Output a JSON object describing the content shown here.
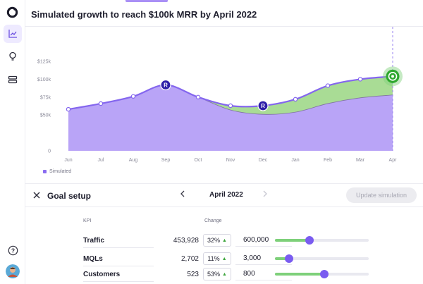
{
  "app": {
    "title": "Simulated growth to reach $100k MRR by April 2022"
  },
  "sidebar": {
    "items": [
      {
        "icon": "chart-icon",
        "active": true
      },
      {
        "icon": "lightbulb-icon",
        "active": false
      },
      {
        "icon": "layers-icon",
        "active": false
      }
    ],
    "help_icon": "help-icon",
    "avatar_icon": "user-avatar"
  },
  "chart_data": {
    "type": "area",
    "x": [
      "Jun",
      "Jul",
      "Aug",
      "Sep",
      "Oct",
      "Nov",
      "Dec",
      "Jan",
      "Feb",
      "Mar",
      "Apr"
    ],
    "y_ticks": [
      {
        "label": "0",
        "value": 0
      },
      {
        "label": "$50k",
        "value": 50000
      },
      {
        "label": "$75k",
        "value": 75000
      },
      {
        "label": "$100k",
        "value": 100000
      },
      {
        "label": "$125k",
        "value": 125000
      }
    ],
    "ylim": [
      0,
      125000
    ],
    "series": [
      {
        "name": "Simulated",
        "color": "#b9a4f7",
        "line_color": "#8466ee",
        "values": [
          58000,
          66000,
          76000,
          92000,
          75000,
          63000,
          63000,
          72000,
          91000,
          100000,
          104000
        ]
      },
      {
        "color": "#a9dc95",
        "line_color": "#7f72a0",
        "values": [
          58000,
          66000,
          76000,
          92000,
          75000,
          57000,
          51000,
          54000,
          66000,
          74000,
          78000
        ]
      }
    ],
    "annotations": [
      {
        "x": "Sep",
        "label": "R",
        "kind": "milestone"
      },
      {
        "x": "Dec",
        "label": "R",
        "kind": "milestone"
      },
      {
        "x": "Apr",
        "kind": "target"
      }
    ],
    "legend": {
      "position": "bottom-left",
      "label": "Simulated"
    },
    "grid": false
  },
  "goal": {
    "title": "Goal setup",
    "month": "April 2022",
    "prev_icon": "chevron-left-icon",
    "next_icon": "chevron-right-icon",
    "update_label": "Update simulation"
  },
  "kpi": {
    "col_kpi": "KPI",
    "col_change": "Change",
    "rows": [
      {
        "name": "Traffic",
        "current": "453,928",
        "change": "32%",
        "target": "600,000",
        "slider_fraction": 0.37
      },
      {
        "name": "MQLs",
        "current": "2,702",
        "change": "11%",
        "target": "3,000",
        "slider_fraction": 0.15
      },
      {
        "name": "Customers",
        "current": "523",
        "change": "53%",
        "target": "800",
        "slider_fraction": 0.53
      }
    ]
  }
}
